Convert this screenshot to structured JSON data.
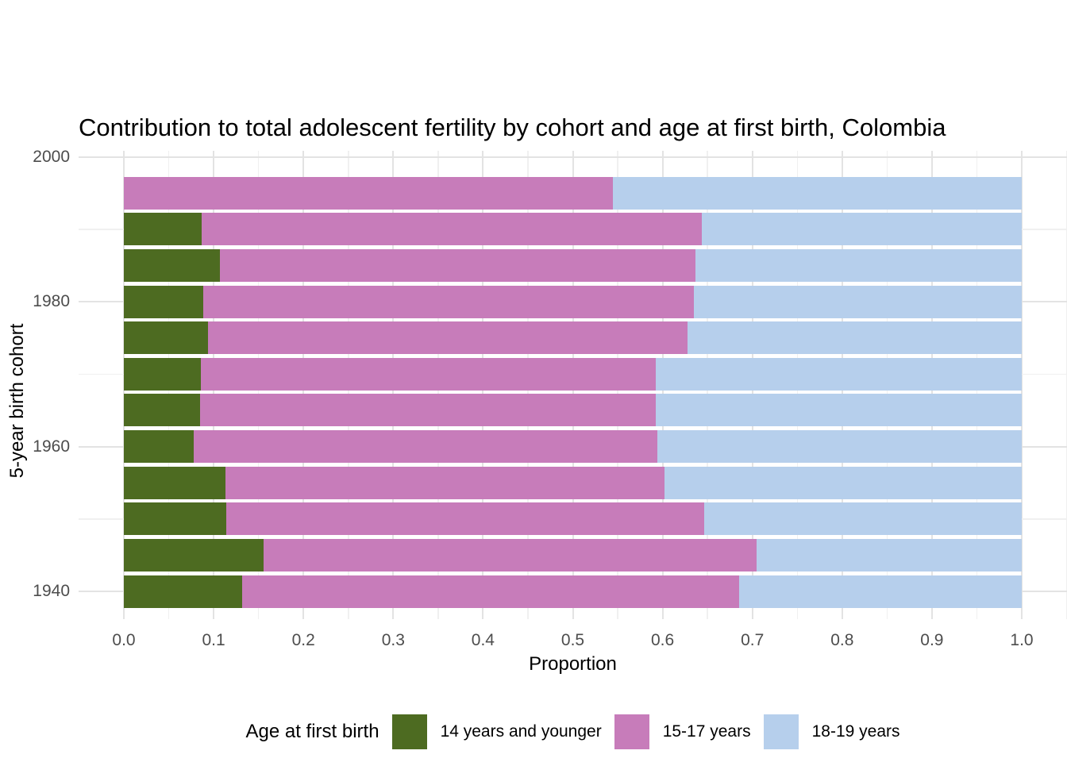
{
  "title": "Contribution to total adolescent fertility by cohort and age at first birth,  Colombia",
  "axes": {
    "x": {
      "label": "Proportion"
    },
    "y": {
      "label": "5-year birth cohort"
    }
  },
  "legend": {
    "title": "Age at first birth",
    "items": [
      {
        "label": "14 years and younger",
        "color": "#4d6b21"
      },
      {
        "label": "15-17 years",
        "color": "#c77cba"
      },
      {
        "label": "18-19 years",
        "color": "#b6cfec"
      }
    ]
  },
  "chart_data": {
    "type": "bar",
    "orientation": "horizontal",
    "stacked": true,
    "title": "Contribution to total adolescent fertility by cohort and age at first birth,  Colombia",
    "xlabel": "Proportion",
    "ylabel": "5-year birth cohort",
    "xlim": [
      0.0,
      1.0
    ],
    "x_ticks": [
      0.0,
      0.1,
      0.2,
      0.3,
      0.4,
      0.5,
      0.6,
      0.7,
      0.8,
      0.9,
      1.0
    ],
    "x_tick_labels": [
      "0.0",
      "0.1",
      "0.2",
      "0.3",
      "0.4",
      "0.5",
      "0.6",
      "0.7",
      "0.8",
      "0.9",
      "1.0"
    ],
    "y_ticks_major": [
      1940,
      1960,
      1980,
      2000
    ],
    "y_ticks_minor": [
      1950,
      1970,
      1990
    ],
    "y_tick_labels": [
      "1940",
      "1960",
      "1980",
      "2000"
    ],
    "grid": true,
    "legend_position": "bottom",
    "categories": [
      1940,
      1945,
      1950,
      1955,
      1960,
      1965,
      1970,
      1975,
      1980,
      1985,
      1990,
      1995
    ],
    "series": [
      {
        "name": "14 years and younger",
        "color": "#4d6b21",
        "values": [
          0.132,
          0.156,
          0.114,
          0.113,
          0.078,
          0.085,
          0.086,
          0.094,
          0.088,
          0.107,
          0.087,
          0.0
        ]
      },
      {
        "name": "15-17 years",
        "color": "#c77cba",
        "values": [
          0.553,
          0.549,
          0.532,
          0.489,
          0.516,
          0.507,
          0.506,
          0.534,
          0.547,
          0.53,
          0.557,
          0.545
        ]
      },
      {
        "name": "18-19 years",
        "color": "#b6cfec",
        "values": [
          0.315,
          0.295,
          0.354,
          0.398,
          0.406,
          0.408,
          0.408,
          0.372,
          0.365,
          0.363,
          0.356,
          0.455
        ]
      }
    ]
  }
}
